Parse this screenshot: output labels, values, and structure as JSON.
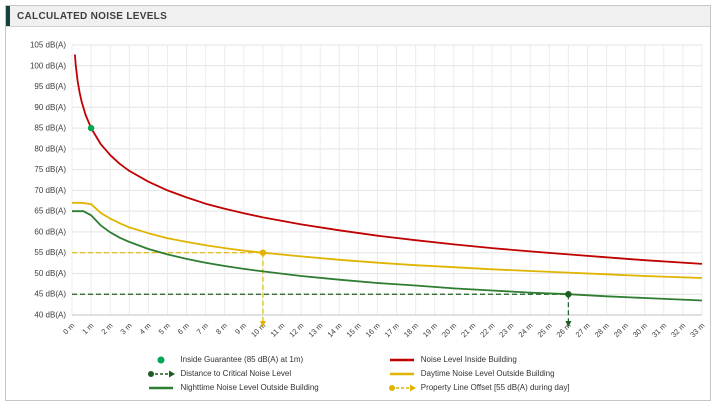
{
  "header": {
    "title": "CALCULATED NOISE LEVELS"
  },
  "chart_data": {
    "type": "line",
    "title": "CALCULATED NOISE LEVELS",
    "xlabel": "",
    "ylabel": "",
    "xlim": [
      0,
      33
    ],
    "ylim": [
      40,
      105
    ],
    "grid": true,
    "legend_position": "bottom",
    "x_tick_labels": [
      "0 m",
      "1 m",
      "2 m",
      "3 m",
      "4 m",
      "5 m",
      "6 m",
      "7 m",
      "8 m",
      "9 m",
      "10 m",
      "11 m",
      "12 m",
      "13 m",
      "14 m",
      "15 m",
      "16 m",
      "17 m",
      "18 m",
      "19 m",
      "20 m",
      "21 m",
      "22 m",
      "23 m",
      "24 m",
      "25 m",
      "26 m",
      "27 m",
      "28 m",
      "29 m",
      "30 m",
      "31 m",
      "32 m",
      "33 m"
    ],
    "y_ticks": [
      40,
      45,
      50,
      55,
      60,
      65,
      70,
      75,
      80,
      85,
      90,
      95,
      100,
      105
    ],
    "y_tick_labels": [
      "40 dB(A)",
      "45 dB(A)",
      "50 dB(A)",
      "55 dB(A)",
      "60 dB(A)",
      "65 dB(A)",
      "70 dB(A)",
      "75 dB(A)",
      "80 dB(A)",
      "85 dB(A)",
      "90 dB(A)",
      "95 dB(A)",
      "100 dB(A)",
      "105 dB(A)"
    ],
    "series": [
      {
        "name": "Noise Level Inside Building",
        "color": "#c00000",
        "points": [
          [
            0.15,
            102.7
          ],
          [
            0.2,
            100
          ],
          [
            0.3,
            96.2
          ],
          [
            0.4,
            93.6
          ],
          [
            0.5,
            91.5
          ],
          [
            0.7,
            88.3
          ],
          [
            1,
            85
          ],
          [
            1.5,
            81.2
          ],
          [
            2,
            78.5
          ],
          [
            2.5,
            76.4
          ],
          [
            3,
            74.7
          ],
          [
            4,
            72.1
          ],
          [
            5,
            70
          ],
          [
            6,
            68.3
          ],
          [
            7,
            66.8
          ],
          [
            8,
            65.6
          ],
          [
            9,
            64.5
          ],
          [
            10,
            63.5
          ],
          [
            12,
            61.8
          ],
          [
            14,
            60.4
          ],
          [
            16,
            59.1
          ],
          [
            18,
            58
          ],
          [
            20,
            57
          ],
          [
            22,
            56.1
          ],
          [
            24,
            55.3
          ],
          [
            26,
            54.6
          ],
          [
            28,
            53.9
          ],
          [
            30,
            53.2
          ],
          [
            33,
            52.3
          ]
        ]
      },
      {
        "name": "Daytime Noise Level Outside Building",
        "color": "#e0b400",
        "points": [
          [
            0,
            67
          ],
          [
            0.5,
            67
          ],
          [
            1,
            66.7
          ],
          [
            1.5,
            64.6
          ],
          [
            2,
            63.2
          ],
          [
            2.5,
            62.1
          ],
          [
            3,
            61.1
          ],
          [
            4,
            59.7
          ],
          [
            5,
            58.5
          ],
          [
            6,
            57.6
          ],
          [
            7,
            56.8
          ],
          [
            8,
            56.1
          ],
          [
            9,
            55.5
          ],
          [
            10,
            55
          ],
          [
            12,
            54.1
          ],
          [
            14,
            53.3
          ],
          [
            16,
            52.6
          ],
          [
            18,
            52
          ],
          [
            20,
            51.5
          ],
          [
            22,
            51
          ],
          [
            24,
            50.6
          ],
          [
            26,
            50.2
          ],
          [
            28,
            49.8
          ],
          [
            30,
            49.4
          ],
          [
            33,
            48.9
          ]
        ]
      },
      {
        "name": "Nighttime Noise Level Outside Building",
        "color": "#2e7d32",
        "points": [
          [
            0,
            65
          ],
          [
            0.6,
            65
          ],
          [
            1,
            64
          ],
          [
            1.5,
            61.6
          ],
          [
            2,
            59.9
          ],
          [
            2.5,
            58.6
          ],
          [
            3,
            57.6
          ],
          [
            4,
            55.9
          ],
          [
            5,
            54.6
          ],
          [
            6,
            53.5
          ],
          [
            7,
            52.6
          ],
          [
            8,
            51.8
          ],
          [
            9,
            51.1
          ],
          [
            10,
            50.5
          ],
          [
            12,
            49.4
          ],
          [
            14,
            48.5
          ],
          [
            16,
            47.7
          ],
          [
            18,
            47.1
          ],
          [
            20,
            46.4
          ],
          [
            22,
            45.9
          ],
          [
            24,
            45.4
          ],
          [
            26,
            45
          ],
          [
            28,
            44.5
          ],
          [
            30,
            44.1
          ],
          [
            33,
            43.5
          ]
        ]
      }
    ],
    "markers": [
      {
        "name": "Inside Guarantee (85 dB(A) at 1m)",
        "x": 1,
        "y": 85,
        "color": "#00a651",
        "guide": false
      },
      {
        "name": "Property Line Offset [55 dB(A) during day]",
        "x": 10,
        "y": 55,
        "color": "#e0b400",
        "guide": true
      },
      {
        "name": "Distance to Critical Noise Level",
        "x": 26,
        "y": 45,
        "color": "#1b5e20",
        "guide": true
      }
    ],
    "legend": [
      {
        "label": "Inside Guarantee (85 dB(A) at 1m)",
        "type": "dot",
        "color": "#00a651"
      },
      {
        "label": "Noise Level Inside Building",
        "type": "line",
        "color": "#c00000"
      },
      {
        "label": "Distance to Critical Noise Level",
        "type": "dot-arrow",
        "color": "#1b5e20"
      },
      {
        "label": "Daytime Noise Level Outside Building",
        "type": "line",
        "color": "#e0b400"
      },
      {
        "label": "Nighttime Noise Level Outside Building",
        "type": "line",
        "color": "#2e7d32"
      },
      {
        "label": "Property Line Offset [55 dB(A) during day]",
        "type": "dot-arrow",
        "color": "#e0b400"
      }
    ]
  }
}
